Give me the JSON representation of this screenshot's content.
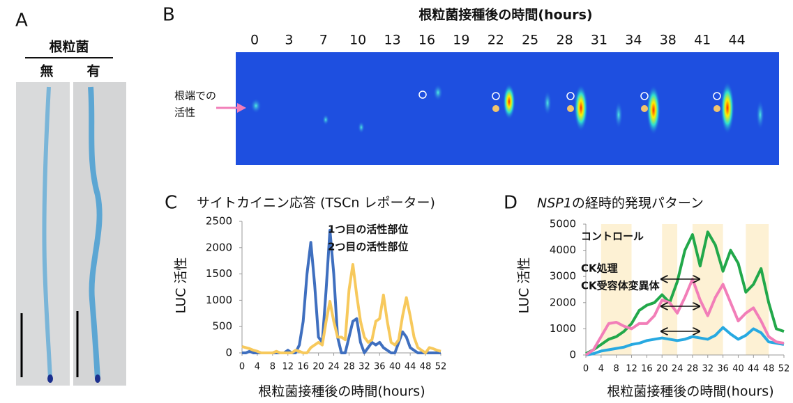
{
  "panels": {
    "a": {
      "letter": "A",
      "heading": "根粒菌",
      "labels": [
        "無",
        "有"
      ]
    },
    "b": {
      "letter": "B",
      "title": "根粒菌接種後の時間(hours)",
      "timepoints": [
        0,
        3,
        7,
        10,
        13,
        16,
        19,
        22,
        25,
        28,
        31,
        34,
        38,
        41,
        44
      ],
      "annotation": [
        "根端での",
        "活性"
      ]
    }
  },
  "chart_data": [
    {
      "type": "line",
      "letter": "C",
      "title": "サイトカイニン応答 (TSCn レポーター)",
      "y_label": "LUC 活性",
      "x_label": "根粒菌接種後の時間(hours)",
      "x": [
        0,
        1,
        2,
        3,
        4,
        5,
        6,
        7,
        8,
        9,
        10,
        11,
        12,
        13,
        14,
        15,
        16,
        17,
        18,
        19,
        20,
        21,
        22,
        23,
        24,
        25,
        26,
        27,
        28,
        29,
        30,
        31,
        32,
        33,
        34,
        35,
        36,
        37,
        38,
        39,
        40,
        41,
        42,
        43,
        44,
        45,
        46,
        47,
        48,
        49,
        50,
        51,
        52
      ],
      "xlim": [
        0,
        52
      ],
      "xticks": [
        0,
        4,
        8,
        12,
        16,
        20,
        24,
        28,
        32,
        36,
        40,
        44,
        48,
        52
      ],
      "ylim": [
        0,
        2500
      ],
      "yticks": [
        0,
        500,
        1000,
        1500,
        2000,
        2500
      ],
      "series": [
        {
          "name": "1つ目の活性部位",
          "color": "#3f6fbf",
          "values": [
            0,
            0,
            30,
            0,
            0,
            0,
            0,
            0,
            0,
            0,
            0,
            0,
            50,
            0,
            0,
            150,
            600,
            1500,
            2100,
            1300,
            300,
            200,
            1200,
            2330,
            1500,
            300,
            0,
            0,
            300,
            600,
            650,
            200,
            0,
            100,
            200,
            150,
            200,
            100,
            50,
            0,
            0,
            200,
            400,
            300,
            100,
            50,
            0,
            0,
            0,
            0,
            0,
            0,
            0
          ]
        },
        {
          "name": "2つ目の活性部位",
          "color": "#f7c95c",
          "values": [
            120,
            100,
            80,
            50,
            30,
            0,
            0,
            0,
            0,
            30,
            0,
            0,
            0,
            0,
            50,
            30,
            0,
            0,
            100,
            150,
            200,
            150,
            600,
            980,
            600,
            300,
            300,
            250,
            1200,
            1680,
            1100,
            600,
            300,
            200,
            250,
            600,
            650,
            1100,
            600,
            200,
            150,
            250,
            700,
            1050,
            700,
            300,
            100,
            50,
            0,
            100,
            80,
            50,
            30
          ]
        }
      ]
    },
    {
      "type": "line",
      "letter": "D",
      "title_italic": "NSP1",
      "title": "の経時的発現パターン",
      "y_label": "LUC 活性",
      "x_label": "根粒菌接種後の時間(hours)",
      "x": [
        0,
        2,
        4,
        6,
        8,
        10,
        12,
        14,
        16,
        18,
        20,
        22,
        24,
        26,
        28,
        30,
        32,
        34,
        36,
        38,
        40,
        42,
        44,
        46,
        48,
        50,
        52
      ],
      "xlim": [
        0,
        52
      ],
      "xticks": [
        0,
        4,
        8,
        12,
        16,
        20,
        24,
        28,
        32,
        36,
        40,
        44,
        48,
        52
      ],
      "ylim": [
        0,
        5000
      ],
      "yticks": [
        0,
        1000,
        2000,
        3000,
        4000,
        5000
      ],
      "shaded_ranges": [
        [
          4,
          12
        ],
        [
          20,
          24
        ],
        [
          28,
          36
        ],
        [
          42,
          48
        ]
      ],
      "series": [
        {
          "name": "コントロール",
          "color": "#22a84a",
          "values": [
            50,
            200,
            400,
            600,
            700,
            900,
            1200,
            1700,
            1900,
            2000,
            2300,
            2000,
            2800,
            4000,
            4600,
            3400,
            4700,
            4200,
            3200,
            4000,
            3500,
            2400,
            2700,
            3300,
            2000,
            1000,
            900
          ]
        },
        {
          "name": "CK処理",
          "color": "#27a9e1",
          "values": [
            0,
            50,
            150,
            200,
            250,
            300,
            400,
            450,
            550,
            600,
            650,
            600,
            550,
            600,
            700,
            650,
            600,
            750,
            1050,
            800,
            600,
            750,
            1000,
            850,
            500,
            450,
            400
          ]
        },
        {
          "name": "CK受容体変異体",
          "color": "#f27eb8",
          "values": [
            0,
            200,
            700,
            1200,
            1250,
            1100,
            1000,
            1200,
            1200,
            1500,
            2100,
            2000,
            1600,
            2200,
            2900,
            2100,
            1500,
            2200,
            2700,
            2000,
            1300,
            1600,
            1800,
            1300,
            700,
            500,
            450
          ]
        }
      ]
    }
  ]
}
